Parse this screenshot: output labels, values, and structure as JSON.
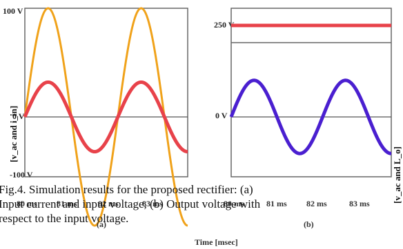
{
  "caption": {
    "line1": "Fig.4. Simulation results for the proposed rectifier: (a)",
    "line2": "Input current and input voltage, (b) Output voltage with",
    "line3": "respect to the input voltage."
  },
  "common_xlabel": "Time [msec]",
  "chart_data": [
    {
      "type": "line",
      "panel_label": "(a)",
      "ylabel": "[v_ac and i_in]",
      "ytick_labels": [
        "100 V",
        "0 V",
        "-100 V"
      ],
      "xtick_labels": [
        "80 ms",
        "81 ms",
        "82 ms",
        "83 ms"
      ],
      "ylim": [
        -100,
        100
      ],
      "x_units": "ms",
      "xlim": [
        80,
        83.5
      ],
      "series": [
        {
          "color": "#f0a21a",
          "amplitude": 100,
          "period_ms": 2.0,
          "phase_start": "+0",
          "description": "input voltage"
        },
        {
          "color": "#e8424a",
          "amplitude": 32,
          "period_ms": 2.0,
          "phase_start": "+0",
          "description": "input current"
        }
      ]
    },
    {
      "type": "line",
      "panel_label": "(b)",
      "ylabel": "[v_ac and L_o]",
      "ytick_labels": [
        "250 V",
        "0 V"
      ],
      "xtick_labels": [
        "80 ms",
        "81 ms",
        "82 ms",
        "83 ms"
      ],
      "ylim": [
        -120,
        270
      ],
      "x_units": "ms",
      "xlim": [
        80,
        83.5
      ],
      "series": [
        {
          "color": "#e8424a",
          "constant": 250,
          "description": "output voltage"
        },
        {
          "color": "#4a1fd0",
          "amplitude": 100,
          "period_ms": 2.0,
          "phase_start": "+0",
          "description": "input voltage"
        }
      ]
    }
  ],
  "colors": {
    "orange": "#f0a21a",
    "red": "#e8424a",
    "blue": "#4a1fd0",
    "frame": "#666666"
  }
}
